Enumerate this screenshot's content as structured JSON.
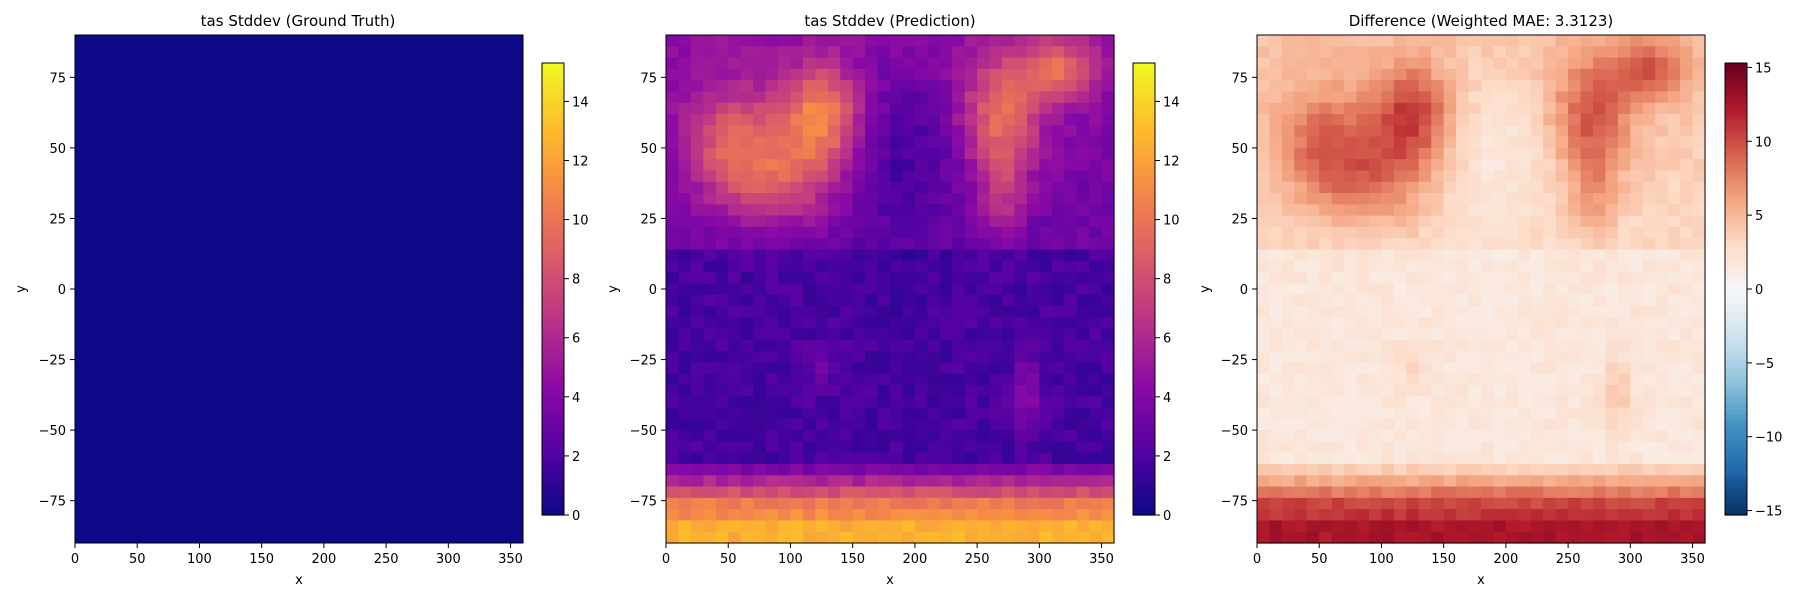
{
  "chart_data": [
    {
      "type": "heatmap",
      "title": "tas Stddev (Ground Truth)",
      "xlabel": "x",
      "ylabel": "y",
      "xlim": [
        0,
        360
      ],
      "ylim": [
        -90,
        90
      ],
      "xticks": [
        0,
        50,
        100,
        150,
        200,
        250,
        300,
        350
      ],
      "yticks": [
        -75,
        -50,
        -25,
        0,
        25,
        50,
        75
      ],
      "colormap": "plasma",
      "clim": [
        0,
        15.3
      ],
      "colorbar_ticks": [
        0,
        2,
        4,
        6,
        8,
        10,
        12,
        14
      ],
      "field": "uniform",
      "uniform_value": 0
    },
    {
      "type": "heatmap",
      "title": "tas Stddev (Prediction)",
      "xlabel": "x",
      "ylabel": "y",
      "xlim": [
        0,
        360
      ],
      "ylim": [
        -90,
        90
      ],
      "xticks": [
        0,
        50,
        100,
        150,
        200,
        250,
        300,
        350
      ],
      "yticks": [
        -75,
        -50,
        -25,
        0,
        25,
        50,
        75
      ],
      "colormap": "plasma",
      "clim": [
        0,
        15.3
      ],
      "colorbar_ticks": [
        0,
        2,
        4,
        6,
        8,
        10,
        12,
        14
      ],
      "field": "tas_stddev_prediction"
    },
    {
      "type": "heatmap",
      "title": "Difference (Weighted MAE: 3.3123)",
      "xlabel": "x",
      "ylabel": "y",
      "xlim": [
        0,
        360
      ],
      "ylim": [
        -90,
        90
      ],
      "xticks": [
        0,
        50,
        100,
        150,
        200,
        250,
        300,
        350
      ],
      "yticks": [
        -75,
        -50,
        -25,
        0,
        25,
        50,
        75
      ],
      "colormap": "RdBu_r",
      "clim": [
        -15.3,
        15.3
      ],
      "colorbar_ticks": [
        -15,
        -10,
        -5,
        0,
        5,
        10,
        15
      ],
      "field": "difference"
    }
  ]
}
